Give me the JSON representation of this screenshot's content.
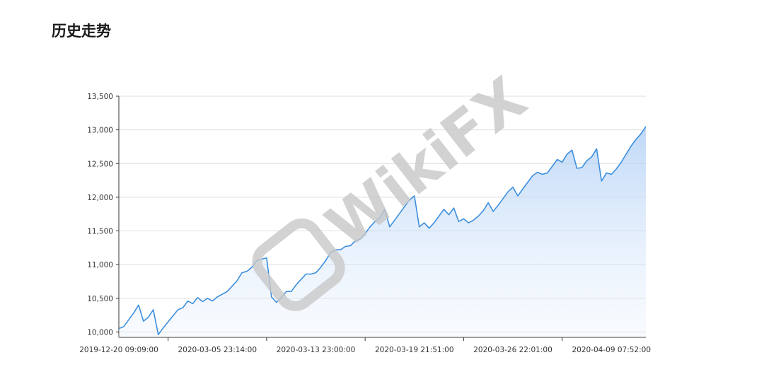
{
  "header": {
    "title": "历史走势"
  },
  "chart_data": {
    "type": "line",
    "watermark": "WikiFX",
    "color": "#3d8fde",
    "fill": true,
    "grid": true,
    "categories": [
      "2019-12-20 09:09:00",
      null,
      null,
      null,
      null,
      null,
      null,
      null,
      null,
      null,
      null,
      null,
      null,
      null,
      null,
      null,
      null,
      null,
      null,
      null,
      "2020-03-05 23:14:00",
      null,
      null,
      null,
      null,
      null,
      null,
      null,
      null,
      null,
      null,
      null,
      null,
      null,
      null,
      null,
      null,
      null,
      null,
      null,
      "2020-03-13 23:00:00",
      null,
      null,
      null,
      null,
      null,
      null,
      null,
      null,
      null,
      null,
      null,
      null,
      null,
      null,
      null,
      null,
      null,
      null,
      null,
      "2020-03-19 21:51:00",
      null,
      null,
      null,
      null,
      null,
      null,
      null,
      null,
      null,
      null,
      null,
      null,
      null,
      null,
      null,
      null,
      null,
      null,
      null,
      "2020-03-26 22:01:00",
      null,
      null,
      null,
      null,
      null,
      null,
      null,
      null,
      null,
      null,
      null,
      null,
      null,
      null,
      null,
      null,
      null,
      null,
      null,
      "2020-04-09 07:52:00",
      null,
      null,
      null,
      null,
      null,
      null,
      null
    ],
    "values": [
      10050,
      10080,
      10180,
      10280,
      10400,
      10160,
      10220,
      10330,
      9960,
      10060,
      10150,
      10240,
      10330,
      10360,
      10460,
      10420,
      10510,
      10450,
      10500,
      10460,
      10520,
      10560,
      10600,
      10680,
      10760,
      10880,
      10900,
      10960,
      11060,
      11080,
      11100,
      10520,
      10440,
      10510,
      10600,
      10600,
      10700,
      10780,
      10860,
      10860,
      10880,
      10960,
      11060,
      11180,
      11220,
      11220,
      11270,
      11280,
      11350,
      11380,
      11460,
      11560,
      11640,
      11700,
      11820,
      11560,
      11660,
      11760,
      11860,
      11960,
      12020,
      11560,
      11620,
      11540,
      11620,
      11720,
      11820,
      11740,
      11840,
      11640,
      11680,
      11620,
      11660,
      11720,
      11800,
      11920,
      11790,
      11880,
      11980,
      12080,
      12150,
      12020,
      12120,
      12220,
      12320,
      12370,
      12340,
      12360,
      12460,
      12560,
      12520,
      12640,
      12700,
      12430,
      12440,
      12540,
      12600,
      12720,
      12240,
      12360,
      12340,
      12420,
      12520,
      12640,
      12760,
      12860,
      12940,
      13050
    ],
    "ylim": [
      9920,
      13500
    ],
    "yticks": [
      {
        "value": 10000,
        "label": "10,000"
      },
      {
        "value": 10500,
        "label": "10,500"
      },
      {
        "value": 11000,
        "label": "11,000"
      },
      {
        "value": 11500,
        "label": "11,500"
      },
      {
        "value": 12000,
        "label": "12,000"
      },
      {
        "value": 12500,
        "label": "12,500"
      },
      {
        "value": 13000,
        "label": "13,000"
      },
      {
        "value": 13500,
        "label": "13,500"
      }
    ]
  }
}
